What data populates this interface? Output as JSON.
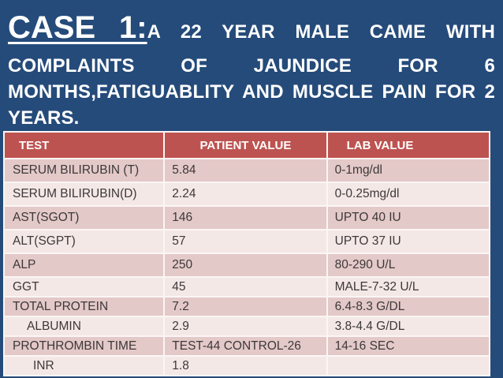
{
  "title": {
    "case_label": "CASE 1:",
    "line1_rest": "A 22 YEAR MALE CAME WITH",
    "line2": "COMPLAINTS OF JAUNDICE FOR 6",
    "line3": "MONTHS,FATIGUABLITY AND MUSCLE PAIN FOR 2",
    "line4": "YEARS."
  },
  "colors": {
    "bg": "#254B7A",
    "header_red": "#BD5350",
    "row_dark": "#E3C9C8",
    "row_light": "#F4E8E6",
    "grid": "#FAF6F5",
    "text_dark": "#3D3839",
    "title_white": "#FFFFFF"
  },
  "table": {
    "headers": [
      "TEST",
      "PATIENT VALUE",
      "LAB VALUE"
    ],
    "rows": [
      {
        "test": "SERUM BILIRUBIN (T)",
        "patient_value": "5.84",
        "lab_value": "0-1mg/dl",
        "indent": 0
      },
      {
        "test": "SERUM BILIRUBIN(D)",
        "patient_value": "2.24",
        "lab_value": "0-0.25mg/dl",
        "indent": 0
      },
      {
        "test": "AST(SGOT)",
        "patient_value": "146",
        "lab_value": "UPTO 40 IU",
        "indent": 0
      },
      {
        "test": "ALT(SGPT)",
        "patient_value": "57",
        "lab_value": "UPTO 37 IU",
        "indent": 0
      },
      {
        "test": "ALP",
        "patient_value": "250",
        "lab_value": "80-290 U/L",
        "indent": 0
      },
      {
        "test": "GGT",
        "patient_value": "45",
        "lab_value": "MALE-7-32 U/L",
        "indent": 0
      },
      {
        "test": "TOTAL PROTEIN",
        "patient_value": "7.2",
        "lab_value": "6.4-8.3 G/DL",
        "indent": 0
      },
      {
        "test": "ALBUMIN",
        "patient_value": "2.9",
        "lab_value": "3.8-4.4 G/DL",
        "indent": 1
      },
      {
        "test": "PROTHROMBIN TIME",
        "patient_value": "TEST-44 CONTROL-26",
        "lab_value": "14-16 SEC",
        "indent": 0
      },
      {
        "test": "INR",
        "patient_value": "1.8",
        "lab_value": "",
        "indent": 2
      }
    ]
  }
}
